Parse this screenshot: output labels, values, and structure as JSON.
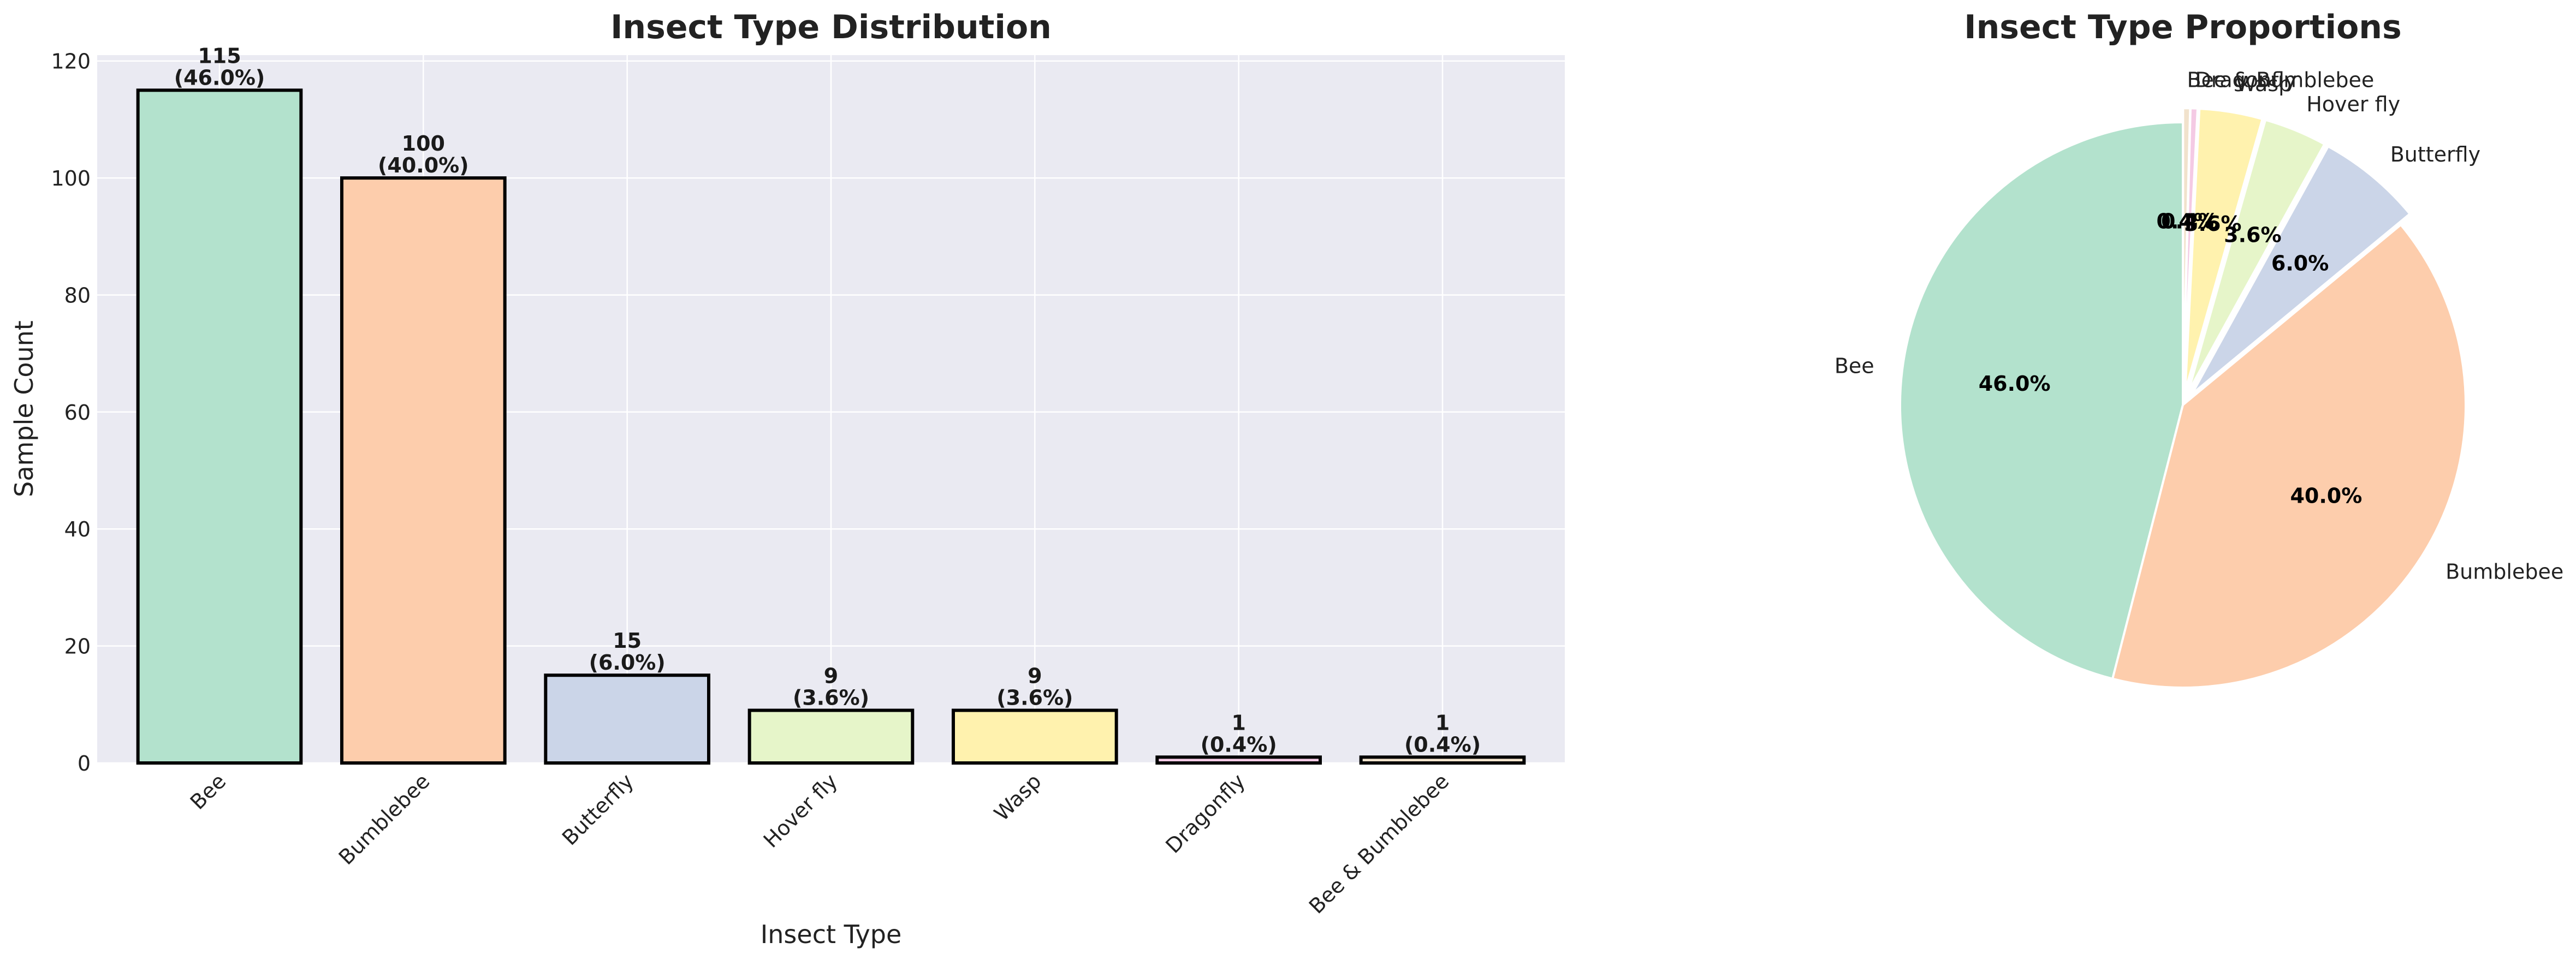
{
  "chart_data": [
    {
      "type": "bar",
      "title": "Insect Type Distribution",
      "xlabel": "Insect Type",
      "ylabel": "Sample Count",
      "categories": [
        "Bee",
        "Bumblebee",
        "Butterfly",
        "Hover fly",
        "Wasp",
        "Dragonfly",
        "Bee & Bumblebee"
      ],
      "values": [
        115,
        100,
        15,
        9,
        9,
        1,
        1
      ],
      "value_labels": [
        "115\n(46.0%)",
        "100\n(40.0%)",
        "15\n(6.0%)",
        "9\n(3.6%)",
        "9\n(3.6%)",
        "1\n(0.4%)",
        "1\n(0.4%)"
      ],
      "ylim": [
        0,
        121
      ],
      "yticks": [
        0,
        20,
        40,
        60,
        80,
        100,
        120
      ],
      "grid": true,
      "colors": [
        "#b3e2cd",
        "#fdcdac",
        "#cbd5e8",
        "#e6f5c9",
        "#fff2ae",
        "#f4cae4",
        "#f1e2cc"
      ],
      "background": "#eaeaf2",
      "edgecolor": "#000000"
    },
    {
      "type": "pie",
      "title": "Insect Type Proportions",
      "labels": [
        "Bee",
        "Bumblebee",
        "Butterfly",
        "Hover fly",
        "Wasp",
        "Dragonfly",
        "Bee & Bumblebee"
      ],
      "values": [
        46.0,
        40.0,
        6.0,
        3.6,
        3.6,
        0.4,
        0.4
      ],
      "pct_labels": [
        "46.0%",
        "40.0%",
        "6.0%",
        "3.6%",
        "3.6%",
        "0.4%",
        "0.4%"
      ],
      "start_angle_deg": 90,
      "direction": "counterclockwise",
      "explode": [
        0,
        0,
        0.05,
        0.05,
        0.05,
        0.05,
        0.05
      ],
      "colors": [
        "#b3e2cd",
        "#fdcdac",
        "#cbd5e8",
        "#e6f5c9",
        "#fff2ae",
        "#f4cae4",
        "#f1e2cc"
      ]
    }
  ]
}
